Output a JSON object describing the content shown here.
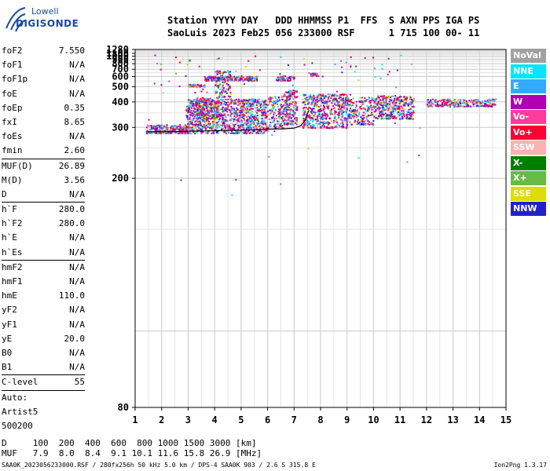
{
  "logo": {
    "line1": "Lowell",
    "line2": "DIGISONDE"
  },
  "header": {
    "line1": "Station YYYY DAY   DDD HHMMSS P1  FFS  S AXN PPS IGA PS",
    "line2": "SaoLuis 2023 Feb25 056 233000 RSF      1 715 100 00- 11"
  },
  "params": [
    {
      "k": "foF2",
      "v": "7.550"
    },
    {
      "k": "foF1",
      "v": "N/A"
    },
    {
      "k": "foF1p",
      "v": "N/A"
    },
    {
      "k": "foE",
      "v": "N/A"
    },
    {
      "k": "foEp",
      "v": "0.35"
    },
    {
      "k": "fxI",
      "v": "8.65"
    },
    {
      "k": "foEs",
      "v": "N/A"
    },
    {
      "k": "fmin",
      "v": "2.60",
      "sep": true
    },
    {
      "k": "MUF(D)",
      "v": "26.89"
    },
    {
      "k": "M(D)",
      "v": "3.56"
    },
    {
      "k": "D",
      "v": "N/A",
      "sep": true
    },
    {
      "k": "h`F",
      "v": "280.0"
    },
    {
      "k": "h`F2",
      "v": "280.0"
    },
    {
      "k": "h`E",
      "v": "N/A"
    },
    {
      "k": "h`Es",
      "v": "N/A",
      "sep": true
    },
    {
      "k": "hmF2",
      "v": "N/A"
    },
    {
      "k": "hmF1",
      "v": "N/A"
    },
    {
      "k": "hmE",
      "v": "110.0"
    },
    {
      "k": "yF2",
      "v": "N/A"
    },
    {
      "k": "yF1",
      "v": "N/A"
    },
    {
      "k": "yE",
      "v": "20.0"
    },
    {
      "k": "B0",
      "v": "N/A"
    },
    {
      "k": "B1",
      "v": "N/A",
      "sep": true
    },
    {
      "k": "C-level",
      "v": "55",
      "sep": true
    },
    {
      "k": "Auto:",
      "v": ""
    },
    {
      "k": "Artist5",
      "v": ""
    },
    {
      "k": "500200",
      "v": ""
    }
  ],
  "legend": [
    {
      "label": "NoVal",
      "color": "#a0a0a0"
    },
    {
      "label": "NNE",
      "color": "#00e6ff"
    },
    {
      "label": "E",
      "color": "#33aaff"
    },
    {
      "label": "W",
      "color": "#b000b0"
    },
    {
      "label": "Vo-",
      "color": "#ff3c9e"
    },
    {
      "label": "Vo+",
      "color": "#ff0033"
    },
    {
      "label": "SSW",
      "color": "#ffb0b0"
    },
    {
      "label": "X-",
      "color": "#008000"
    },
    {
      "label": "X+",
      "color": "#66bb44"
    },
    {
      "label": "SSE",
      "color": "#dddd00"
    },
    {
      "label": "NNW",
      "color": "#2222cc"
    }
  ],
  "dmuf": {
    "line1": "D     100  200  400  600  800 1000 1500 3000 [km]",
    "line2": "MUF   7.9  8.0  8.4  9.1 10.1 11.6 15.8 26.9 [MHz]"
  },
  "footer": "SAA0K_2023056233000.RSF / 280fx256h 50 kHz 5.0 km / DPS-4 SAA0K 903 / 2.6 S 315.8 E",
  "version": "Ion2Png 1.3.17",
  "chart_data": {
    "type": "scatter",
    "xlim": [
      1,
      15
    ],
    "ylim": [
      80,
      1280
    ],
    "x_ticks": [
      1,
      2,
      3,
      4,
      5,
      6,
      7,
      8,
      9,
      10,
      11,
      12,
      13,
      14,
      15
    ],
    "y_ticks": [
      80,
      200,
      300,
      400,
      500,
      600,
      700,
      800,
      900,
      1000,
      1100,
      1280
    ],
    "y_scale": "reciprocal",
    "grid": true,
    "trace": {
      "name": "",
      "color": "#000000",
      "x": [
        1.5,
        2.0,
        2.6,
        3.0,
        3.6,
        4.2,
        4.8,
        5.4,
        6.0,
        6.6,
        7.0,
        7.25,
        7.4,
        7.55
      ],
      "y": [
        288,
        288,
        288,
        289,
        290,
        291,
        292,
        293,
        295,
        296,
        298,
        305,
        320,
        360
      ]
    },
    "clusters": [
      {
        "x": [
          1.4,
          3.0
        ],
        "y": [
          285,
          310
        ],
        "n": 260
      },
      {
        "x": [
          2.9,
          6.0
        ],
        "y": [
          285,
          420
        ],
        "n": 1100
      },
      {
        "x": [
          3.3,
          4.1
        ],
        "y": [
          330,
          430
        ],
        "n": 220
      },
      {
        "x": [
          3.6,
          5.6
        ],
        "y": [
          560,
          610
        ],
        "n": 240
      },
      {
        "x": [
          3.0,
          3.6
        ],
        "y": [
          505,
          525
        ],
        "n": 70
      },
      {
        "x": [
          4.0,
          4.6
        ],
        "y": [
          430,
          690
        ],
        "n": 120
      },
      {
        "x": [
          6.0,
          6.6
        ],
        "y": [
          300,
          440
        ],
        "n": 140
      },
      {
        "x": [
          6.3,
          7.0
        ],
        "y": [
          560,
          620
        ],
        "n": 70
      },
      {
        "x": [
          6.6,
          7.1
        ],
        "y": [
          310,
          480
        ],
        "n": 200
      },
      {
        "x": [
          7.3,
          9.0
        ],
        "y": [
          300,
          450
        ],
        "n": 520
      },
      {
        "x": [
          7.6,
          7.9
        ],
        "y": [
          610,
          650
        ],
        "n": 25
      },
      {
        "x": [
          9.0,
          10.0
        ],
        "y": [
          310,
          430
        ],
        "n": 200
      },
      {
        "x": [
          10.0,
          11.5
        ],
        "y": [
          330,
          440
        ],
        "n": 380
      },
      {
        "x": [
          12.0,
          14.6
        ],
        "y": [
          380,
          420
        ],
        "n": 260
      }
    ]
  }
}
